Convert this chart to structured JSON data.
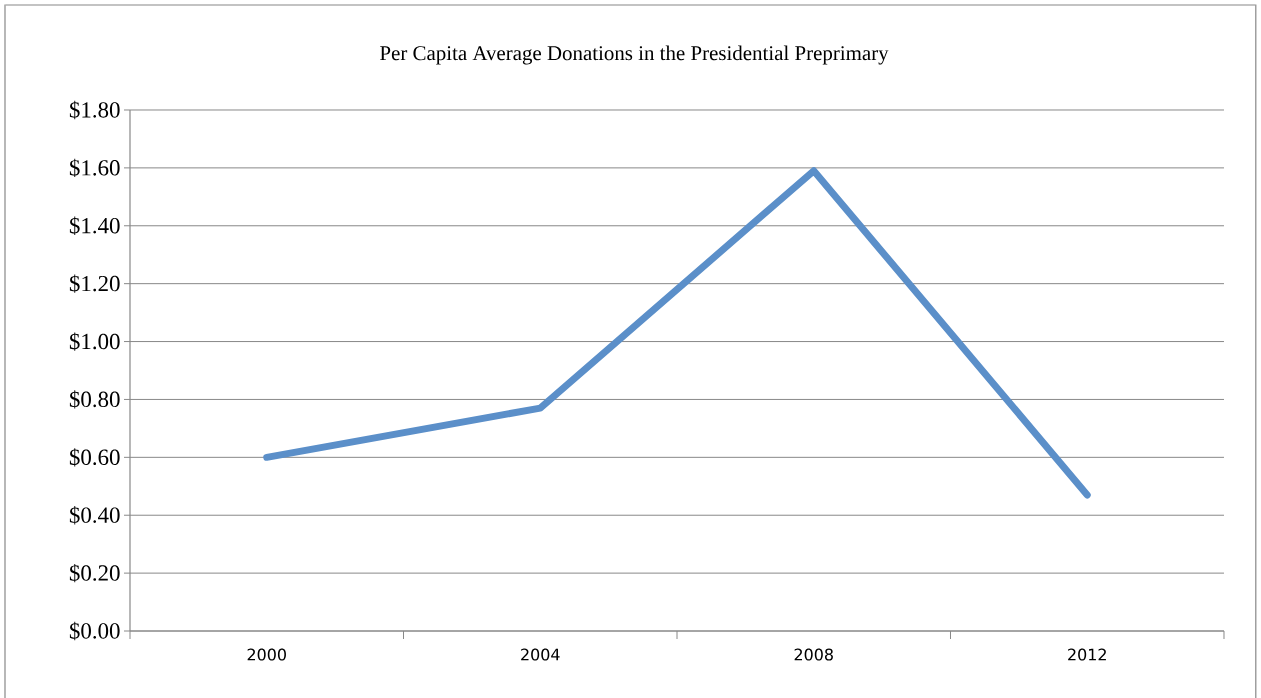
{
  "chart_data": {
    "type": "line",
    "title": "Per Capita Average Donations in the Presidential Preprimary",
    "categories": [
      "2000",
      "2004",
      "2008",
      "2012"
    ],
    "values": [
      0.6,
      0.77,
      1.59,
      0.47
    ],
    "color": "#5b8fc9",
    "ylim": [
      0,
      1.8
    ],
    "yticks": [
      {
        "value": 0,
        "label": "$0.00"
      },
      {
        "value": 0.2,
        "label": "$0.20"
      },
      {
        "value": 0.4,
        "label": "$0.40"
      },
      {
        "value": 0.6,
        "label": "$0.60"
      },
      {
        "value": 0.8,
        "label": "$0.80"
      },
      {
        "value": 1.0,
        "label": "$1.00"
      },
      {
        "value": 1.2,
        "label": "$1.20"
      },
      {
        "value": 1.4,
        "label": "$1.40"
      },
      {
        "value": 1.6,
        "label": "$1.60"
      },
      {
        "value": 1.8,
        "label": "$1.80"
      }
    ],
    "grid": "y",
    "marker": "none",
    "line_style": "solid"
  }
}
